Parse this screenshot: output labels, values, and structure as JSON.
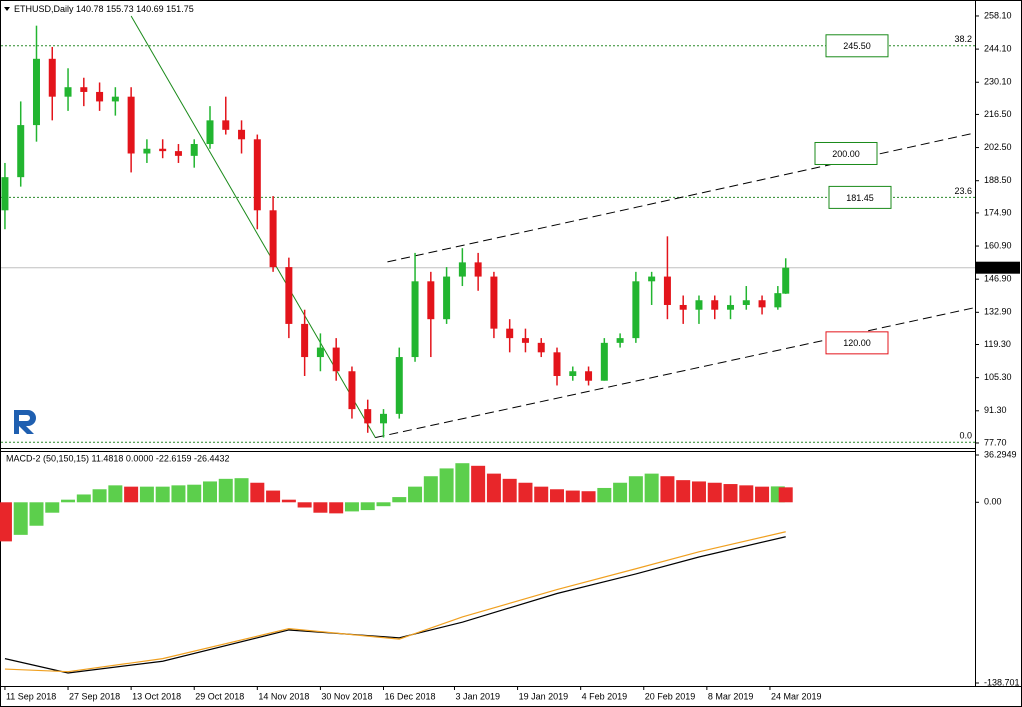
{
  "chart_data": [
    {
      "type": "candlestick",
      "symbol": "ETHUSD,Daily",
      "x": [
        "2018-09-11",
        "2018-09-15",
        "2018-09-19",
        "2018-09-23",
        "2018-09-27",
        "2018-10-01",
        "2018-10-05",
        "2018-10-09",
        "2018-10-13",
        "2018-10-17",
        "2018-10-21",
        "2018-10-25",
        "2018-10-29",
        "2018-11-02",
        "2018-11-06",
        "2018-11-10",
        "2018-11-14",
        "2018-11-18",
        "2018-11-22",
        "2018-11-26",
        "2018-11-30",
        "2018-12-04",
        "2018-12-08",
        "2018-12-12",
        "2018-12-16",
        "2018-12-20",
        "2018-12-24",
        "2018-12-28",
        "2019-01-01",
        "2019-01-05",
        "2019-01-09",
        "2019-01-13",
        "2019-01-17",
        "2019-01-21",
        "2019-01-25",
        "2019-01-29",
        "2019-02-02",
        "2019-02-06",
        "2019-02-10",
        "2019-02-14",
        "2019-02-18",
        "2019-02-22",
        "2019-02-26",
        "2019-03-02",
        "2019-03-06",
        "2019-03-10",
        "2019-03-14",
        "2019-03-18",
        "2019-03-22",
        "2019-03-26",
        "2019-03-28"
      ],
      "open": [
        176,
        190,
        212,
        240,
        224,
        228,
        226,
        222,
        224,
        200,
        202,
        201,
        199,
        204,
        214,
        210,
        206,
        176,
        152,
        128,
        114,
        118,
        108,
        92,
        86,
        90,
        114,
        146,
        130,
        148,
        154,
        148,
        126,
        122,
        120,
        116,
        106,
        108,
        104,
        120,
        122,
        146,
        148,
        136,
        134,
        138,
        134,
        136,
        138,
        135,
        140.78
      ],
      "high": [
        196,
        222,
        254,
        245,
        236,
        232,
        230,
        228,
        228,
        206,
        206,
        204,
        206,
        220,
        224,
        214,
        208,
        182,
        156,
        134,
        124,
        122,
        110,
        96,
        92,
        118,
        158,
        150,
        152,
        160,
        158,
        150,
        130,
        126,
        122,
        118,
        110,
        110,
        122,
        124,
        150,
        150,
        165,
        140,
        140,
        140,
        140,
        144,
        140,
        144,
        155.73
      ],
      "low": [
        168,
        186,
        205,
        214,
        218,
        220,
        218,
        216,
        192,
        196,
        198,
        196,
        194,
        202,
        208,
        200,
        168,
        150,
        122,
        106,
        108,
        104,
        88,
        82,
        80,
        88,
        112,
        114,
        128,
        144,
        142,
        122,
        116,
        116,
        114,
        102,
        104,
        102,
        104,
        118,
        120,
        136,
        130,
        128,
        128,
        130,
        130,
        134,
        132,
        134,
        140.69
      ],
      "close": [
        190,
        212,
        240,
        224,
        228,
        226,
        222,
        224,
        200,
        202,
        201,
        199,
        204,
        214,
        210,
        206,
        176,
        152,
        128,
        114,
        118,
        108,
        92,
        86,
        90,
        114,
        146,
        130,
        148,
        154,
        148,
        126,
        122,
        120,
        116,
        106,
        108,
        104,
        120,
        122,
        146,
        148,
        136,
        134,
        138,
        134,
        136,
        138,
        135,
        141,
        151.75
      ],
      "up_color": "#22b530",
      "down_color": "#e3141b",
      "price_line_color": "#c0c0c0",
      "xlim": [
        "2018-09-10",
        "2019-05-15"
      ],
      "ylim": [
        76.0,
        264.0
      ],
      "yticks": [
        {
          "value": 258.1,
          "label": "258.10"
        },
        {
          "value": 244.1,
          "label": "244.10"
        },
        {
          "value": 230.1,
          "label": "230.10"
        },
        {
          "value": 216.5,
          "label": "216.50"
        },
        {
          "value": 202.5,
          "label": "202.50"
        },
        {
          "value": 188.5,
          "label": "188.50"
        },
        {
          "value": 174.9,
          "label": "174.90"
        },
        {
          "value": 160.9,
          "label": "160.90"
        },
        {
          "value": 146.9,
          "label": "146.90"
        },
        {
          "value": 132.9,
          "label": "132.90"
        },
        {
          "value": 119.3,
          "label": "119.30"
        },
        {
          "value": 105.3,
          "label": "105.30"
        },
        {
          "value": 91.3,
          "label": "91.30"
        },
        {
          "value": 77.7,
          "label": "77.70"
        }
      ],
      "levels": [
        {
          "value": 245.5,
          "label": "245.50",
          "color": "#1a8a1a"
        },
        {
          "value": 200.0,
          "label": "200.00",
          "color": "#1a8a1a"
        },
        {
          "value": 181.45,
          "label": "181.45",
          "color": "#1a8a1a"
        },
        {
          "value": 120.0,
          "label": "120.00",
          "color": "#e3141b"
        }
      ],
      "fib_levels": [
        {
          "value": 245.5,
          "label": "38.2"
        },
        {
          "value": 181.45,
          "label": "23.6"
        },
        {
          "value": 78.0,
          "label": "0.0"
        }
      ],
      "fib_color": "#2a8a2a",
      "trendlines": [
        {
          "x": [
            "2018-10-13",
            "2018-12-14"
          ],
          "y": [
            258.1,
            79.8
          ],
          "color": "#1a8a1a",
          "dashed": false
        },
        {
          "x": [
            "2018-12-17",
            "2019-05-15"
          ],
          "y": [
            154.2,
            208.7
          ],
          "color": "#000000",
          "dashed": true
        },
        {
          "x": [
            "2018-12-14",
            "2019-05-15"
          ],
          "y": [
            80.0,
            134.9
          ],
          "color": "#000000",
          "dashed": true
        }
      ]
    },
    {
      "type": "macd",
      "title": "MACD-2 (50,150,15) 11.4818 0.0000 -22.6159 -26.4432",
      "x": [
        "2018-09-11",
        "2018-09-15",
        "2018-09-19",
        "2018-09-23",
        "2018-09-27",
        "2018-10-01",
        "2018-10-05",
        "2018-10-09",
        "2018-10-13",
        "2018-10-17",
        "2018-10-21",
        "2018-10-25",
        "2018-10-29",
        "2018-11-02",
        "2018-11-06",
        "2018-11-10",
        "2018-11-14",
        "2018-11-18",
        "2018-11-22",
        "2018-11-26",
        "2018-11-30",
        "2018-12-04",
        "2018-12-08",
        "2018-12-12",
        "2018-12-16",
        "2018-12-20",
        "2018-12-24",
        "2018-12-28",
        "2019-01-01",
        "2019-01-05",
        "2019-01-09",
        "2019-01-13",
        "2019-01-17",
        "2019-01-21",
        "2019-01-25",
        "2019-01-29",
        "2019-02-02",
        "2019-02-06",
        "2019-02-10",
        "2019-02-14",
        "2019-02-18",
        "2019-02-22",
        "2019-02-26",
        "2019-03-02",
        "2019-03-06",
        "2019-03-10",
        "2019-03-14",
        "2019-03-18",
        "2019-03-22",
        "2019-03-26",
        "2019-03-28"
      ],
      "histogram": [
        -30,
        -25,
        -18,
        -8,
        2,
        6,
        10,
        13,
        12,
        12,
        12,
        13,
        13.5,
        16,
        18,
        18.5,
        15,
        9,
        2,
        -4,
        -8,
        -8.5,
        -7,
        -6,
        -3,
        4,
        12,
        20,
        26,
        30,
        28,
        22,
        18,
        15,
        12,
        10,
        9,
        8.5,
        11,
        15,
        20,
        22,
        20,
        17,
        16,
        15,
        14,
        13,
        12,
        12.2,
        11.4818
      ],
      "up_color": "#5ccf4c",
      "down_color": "#e8262a",
      "series": [
        {
          "color": "#000000",
          "x": [
            "2018-09-11",
            "2018-09-27",
            "2018-10-21",
            "2018-11-22",
            "2018-12-20",
            "2019-01-05",
            "2019-01-29",
            "2019-02-18",
            "2019-03-06",
            "2019-03-28"
          ],
          "values": [
            -120,
            -131,
            -122,
            -98,
            -104,
            -92,
            -70,
            -55,
            -42,
            -26.4432
          ]
        },
        {
          "color": "#f0a020",
          "x": [
            "2018-09-11",
            "2018-09-27",
            "2018-10-21",
            "2018-11-22",
            "2018-12-20",
            "2019-01-05",
            "2019-01-29",
            "2019-02-18",
            "2019-03-06",
            "2019-03-28"
          ],
          "values": [
            -128,
            -130,
            -120,
            -97,
            -105,
            -88,
            -67,
            -51,
            -38,
            -22.6159
          ]
        }
      ],
      "xlim": [
        "2018-09-10",
        "2019-05-15"
      ],
      "ylim": [
        -138.701,
        36.2949
      ],
      "yticks": [
        36.2949,
        {
          "value": 0,
          "label": "0.00"
        },
        -138.701
      ],
      "xticks": [
        {
          "value": "2018-09-11",
          "label": "11 Sep 2018"
        },
        {
          "value": "2018-09-27",
          "label": "27 Sep 2018"
        },
        {
          "value": "2018-10-13",
          "label": "13 Oct 2018"
        },
        {
          "value": "2018-10-29",
          "label": "29 Oct 2018"
        },
        {
          "value": "2018-11-14",
          "label": "14 Nov 2018"
        },
        {
          "value": "2018-11-30",
          "label": "30 Nov 2018"
        },
        {
          "value": "2018-12-16",
          "label": "16 Dec 2018"
        },
        {
          "value": "2019-01-03",
          "label": "3 Jan 2019"
        },
        {
          "value": "2019-01-19",
          "label": "19 Jan 2019"
        },
        {
          "value": "2019-02-04",
          "label": "4 Feb 2019"
        },
        {
          "value": "2019-02-20",
          "label": "20 Feb 2019"
        },
        {
          "value": "2019-03-08",
          "label": "8 Mar 2019"
        },
        {
          "value": "2019-03-24",
          "label": "24 Mar 2019"
        }
      ]
    }
  ]
}
